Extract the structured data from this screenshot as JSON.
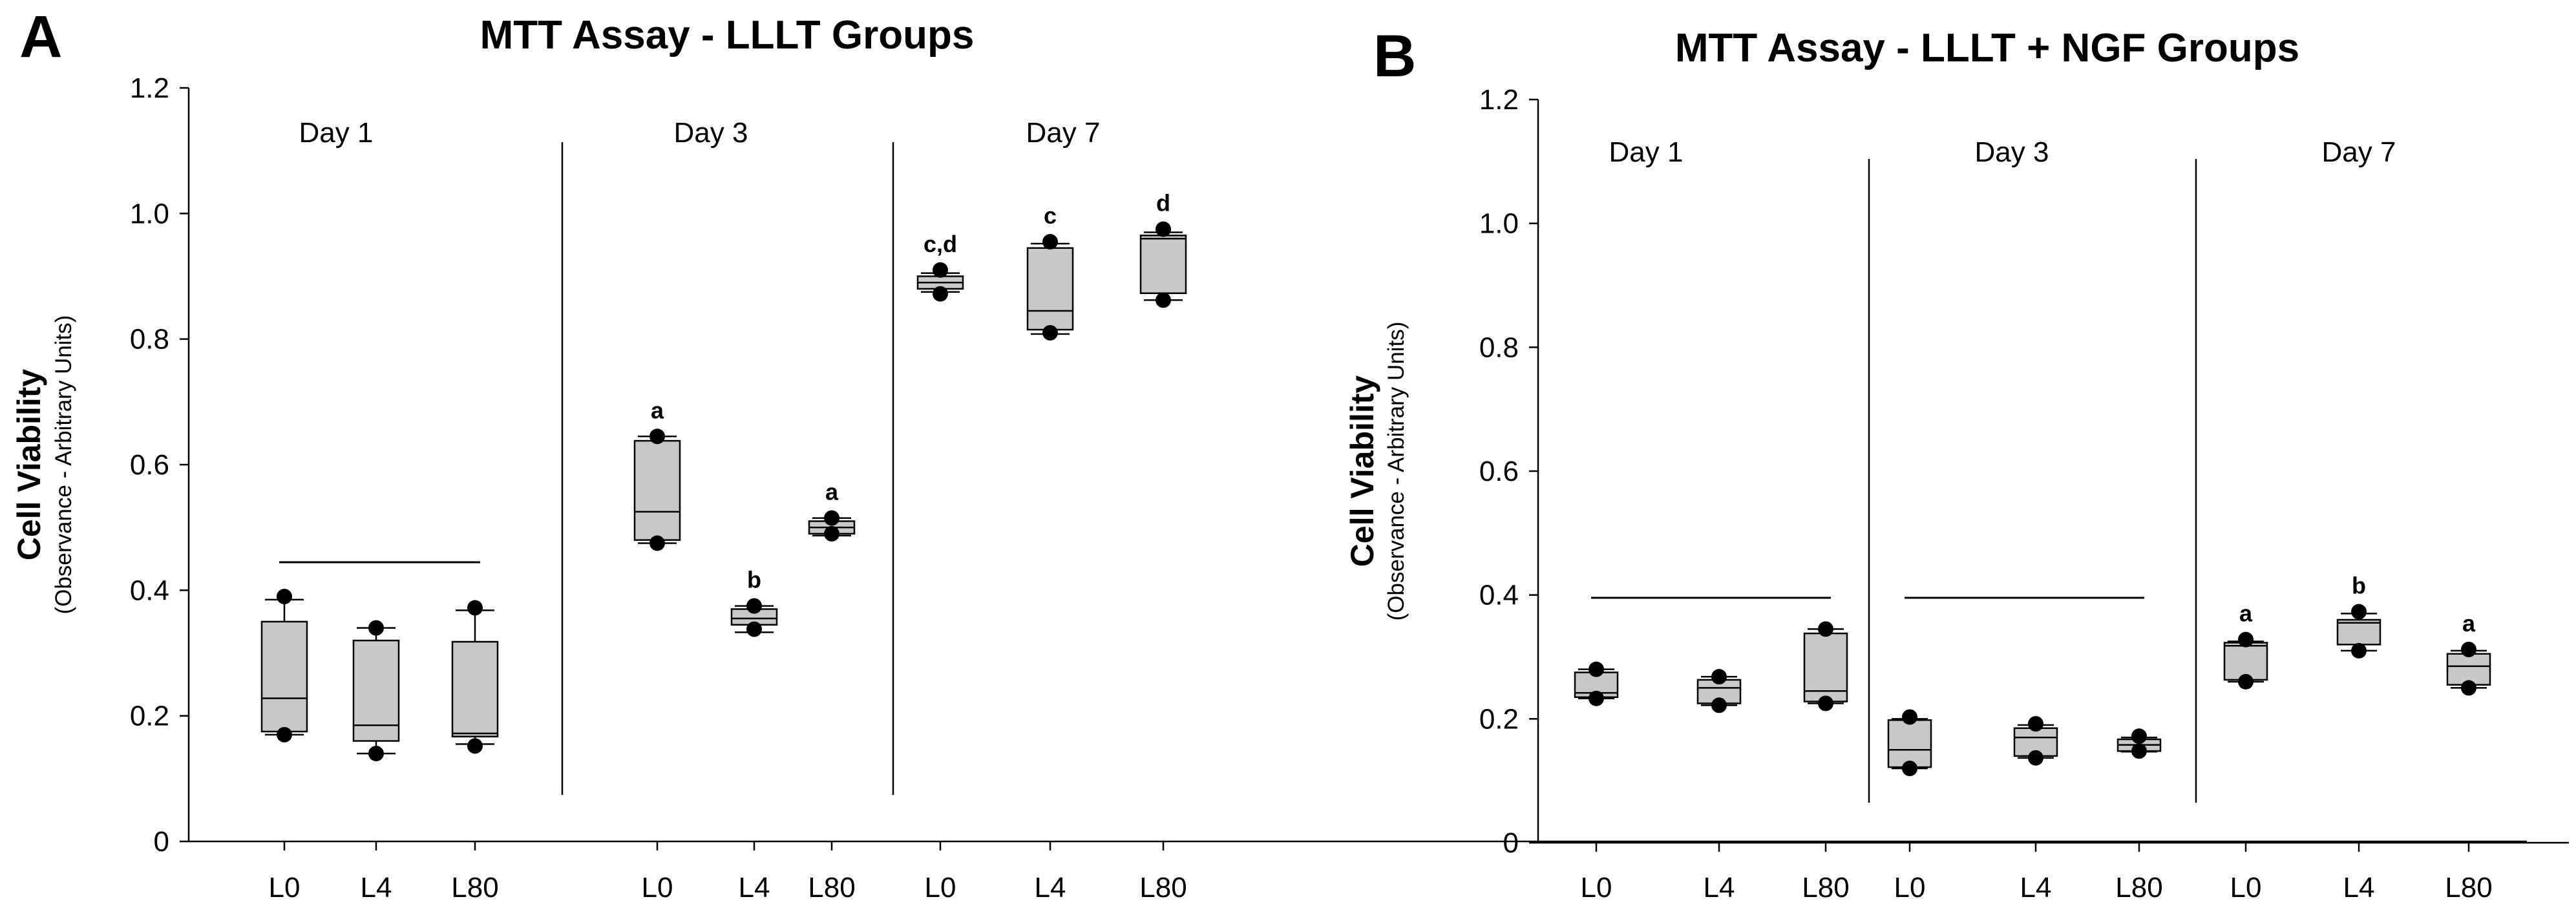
{
  "chart_data": [
    {
      "type": "box",
      "panel": "A",
      "title": "MTT Assay - LLLT Groups",
      "ylabel": "Cell Viability",
      "ylabel_sub": "(Observance - Arbitrary Units)",
      "ylim": [
        0,
        1.2
      ],
      "yticks": [
        "0",
        "0.2",
        "0.4",
        "0.6",
        "0.8",
        "1.0",
        "1.2"
      ],
      "days": [
        {
          "label": "Day 1",
          "bracket": true,
          "groups": [
            {
              "name": "L0",
              "min": 0.17,
              "q1": 0.175,
              "median": 0.228,
              "q3": 0.35,
              "max": 0.385,
              "outliers": [
                0.39,
                0.17
              ],
              "sig": ""
            },
            {
              "name": "L4",
              "min": 0.14,
              "q1": 0.16,
              "median": 0.185,
              "q3": 0.32,
              "max": 0.34,
              "outliers": [
                0.34,
                0.14
              ],
              "sig": ""
            },
            {
              "name": "L80",
              "min": 0.155,
              "q1": 0.167,
              "median": 0.172,
              "q3": 0.318,
              "max": 0.368,
              "outliers": [
                0.372,
                0.152
              ],
              "sig": ""
            }
          ]
        },
        {
          "label": "Day 3",
          "bracket": false,
          "groups": [
            {
              "name": "L0",
              "min": 0.475,
              "q1": 0.48,
              "median": 0.525,
              "q3": 0.638,
              "max": 0.645,
              "outliers": [
                0.645,
                0.475
              ],
              "sig": "a"
            },
            {
              "name": "L4",
              "min": 0.333,
              "q1": 0.345,
              "median": 0.355,
              "q3": 0.37,
              "max": 0.375,
              "outliers": [
                0.375,
                0.338
              ],
              "sig": "b"
            },
            {
              "name": "L80",
              "min": 0.487,
              "q1": 0.49,
              "median": 0.5,
              "q3": 0.51,
              "max": 0.515,
              "outliers": [
                0.515,
                0.49
              ],
              "sig": "a"
            }
          ]
        },
        {
          "label": "Day 7",
          "bracket": false,
          "groups": [
            {
              "name": "L0",
              "min": 0.875,
              "q1": 0.88,
              "median": 0.89,
              "q3": 0.9,
              "max": 0.905,
              "outliers": [
                0.91,
                0.872
              ],
              "sig": "c,d"
            },
            {
              "name": "L4",
              "min": 0.808,
              "q1": 0.815,
              "median": 0.845,
              "q3": 0.945,
              "max": 0.952,
              "outliers": [
                0.955,
                0.81
              ],
              "sig": "c"
            },
            {
              "name": "L80",
              "min": 0.862,
              "q1": 0.873,
              "median": 0.96,
              "q3": 0.965,
              "max": 0.97,
              "outliers": [
                0.975,
                0.862
              ],
              "sig": "d"
            }
          ]
        }
      ]
    },
    {
      "type": "box",
      "panel": "B",
      "title": "MTT Assay - LLLT + NGF Groups",
      "ylabel": "Cell Viability",
      "ylabel_sub": "(Observance - Arbitrary Units)",
      "ylim": [
        0,
        1.2
      ],
      "yticks": [
        "0",
        "0.2",
        "0.4",
        "0.6",
        "0.8",
        "1.0",
        "1.2"
      ],
      "days": [
        {
          "label": "Day 1",
          "bracket": true,
          "groups": [
            {
              "name": "L0",
              "min": 0.233,
              "q1": 0.235,
              "median": 0.242,
              "q3": 0.275,
              "max": 0.28,
              "outliers": [
                0.28,
                0.233
              ],
              "sig": ""
            },
            {
              "name": "L4",
              "min": 0.222,
              "q1": 0.225,
              "median": 0.25,
              "q3": 0.263,
              "max": 0.268,
              "outliers": [
                0.268,
                0.222
              ],
              "sig": ""
            },
            {
              "name": "L80",
              "min": 0.225,
              "q1": 0.228,
              "median": 0.245,
              "q3": 0.338,
              "max": 0.345,
              "outliers": [
                0.345,
                0.225
              ],
              "sig": ""
            }
          ]
        },
        {
          "label": "Day 3",
          "bracket": true,
          "groups": [
            {
              "name": "L0",
              "min": 0.12,
              "q1": 0.122,
              "median": 0.15,
              "q3": 0.198,
              "max": 0.2,
              "outliers": [
                0.203,
                0.12
              ],
              "sig": ""
            },
            {
              "name": "L4",
              "min": 0.137,
              "q1": 0.14,
              "median": 0.17,
              "q3": 0.185,
              "max": 0.19,
              "outliers": [
                0.192,
                0.137
              ],
              "sig": ""
            },
            {
              "name": "L80",
              "min": 0.147,
              "q1": 0.148,
              "median": 0.158,
              "q3": 0.167,
              "max": 0.17,
              "outliers": [
                0.172,
                0.148
              ],
              "sig": ""
            }
          ]
        },
        {
          "label": "Day 7",
          "bracket": false,
          "groups": [
            {
              "name": "L0",
              "min": 0.26,
              "q1": 0.263,
              "median": 0.318,
              "q3": 0.323,
              "max": 0.325,
              "outliers": [
                0.328,
                0.26
              ],
              "sig": "a"
            },
            {
              "name": "L4",
              "min": 0.31,
              "q1": 0.32,
              "median": 0.355,
              "q3": 0.36,
              "max": 0.37,
              "outliers": [
                0.373,
                0.31
              ],
              "sig": "b"
            },
            {
              "name": "L80",
              "min": 0.25,
              "q1": 0.255,
              "median": 0.285,
              "q3": 0.305,
              "max": 0.31,
              "outliers": [
                0.312,
                0.25
              ],
              "sig": "a"
            }
          ]
        }
      ]
    }
  ]
}
